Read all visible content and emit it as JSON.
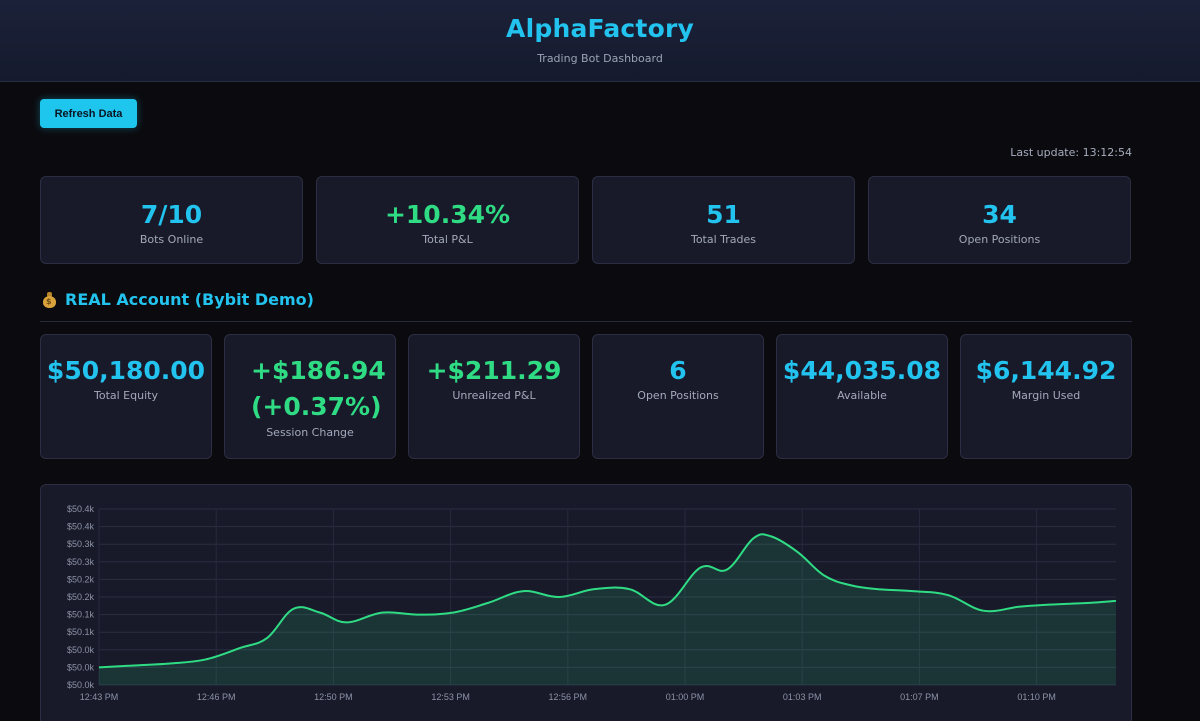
{
  "header": {
    "title": "AlphaFactory",
    "subtitle": "Trading Bot Dashboard"
  },
  "toolbar": {
    "refresh_label": "Refresh Data",
    "last_update": "Last update: 13:12:54"
  },
  "summary": [
    {
      "value": "7/10",
      "label": "Bots Online",
      "color": "#22c3ee"
    },
    {
      "value": "+10.34%",
      "label": "Total P&L",
      "color": "#2fdc84"
    },
    {
      "value": "51",
      "label": "Total Trades",
      "color": "#22c3ee"
    },
    {
      "value": "34",
      "label": "Open Positions",
      "color": "#22c3ee"
    }
  ],
  "account": {
    "icon": "money-bag-icon",
    "title": "REAL Account (Bybit Demo)",
    "cards": [
      {
        "value": "$50,180.00",
        "label": "Total Equity"
      },
      {
        "value": "+$186.94 (+0.37%)",
        "label": "Session Change"
      },
      {
        "value": "+$211.29",
        "label": "Unrealized P&L"
      },
      {
        "value": "6",
        "label": "Open Positions"
      },
      {
        "value": "$44,035.08",
        "label": "Available"
      },
      {
        "value": "$6,144.92",
        "label": "Margin Used"
      }
    ]
  },
  "chart_data": {
    "type": "area",
    "title": "",
    "xlabel": "",
    "ylabel": "",
    "line_color": "#2fdc84",
    "x_ticks": [
      "12:43 PM",
      "12:46 PM",
      "12:50 PM",
      "12:53 PM",
      "12:56 PM",
      "01:00 PM",
      "01:03 PM",
      "01:07 PM",
      "01:10 PM"
    ],
    "y_ticks": [
      "$50.0k",
      "$50.0k",
      "$50.0k",
      "$50.1k",
      "$50.1k",
      "$50.2k",
      "$50.2k",
      "$50.3k",
      "$50.3k",
      "$50.4k",
      "$50.4k"
    ],
    "ylim": [
      49970,
      50420
    ],
    "x_minutes": [
      0,
      2,
      4,
      6,
      8,
      9.5,
      11,
      12.5,
      14,
      16,
      18,
      20,
      22,
      24,
      26,
      28,
      30,
      32,
      34,
      35.5,
      37,
      38,
      39.5,
      41,
      42.5,
      44,
      46,
      48,
      50,
      52,
      53.5,
      55,
      56,
      57.5
    ],
    "values": [
      50015,
      50020,
      50025,
      50035,
      50065,
      50090,
      50165,
      50155,
      50130,
      50155,
      50150,
      50155,
      50180,
      50210,
      50195,
      50215,
      50215,
      50175,
      50270,
      50265,
      50345,
      50350,
      50310,
      50250,
      50225,
      50215,
      50210,
      50200,
      50160,
      50170,
      50175,
      50178,
      50180,
      50185
    ],
    "grid": true
  }
}
